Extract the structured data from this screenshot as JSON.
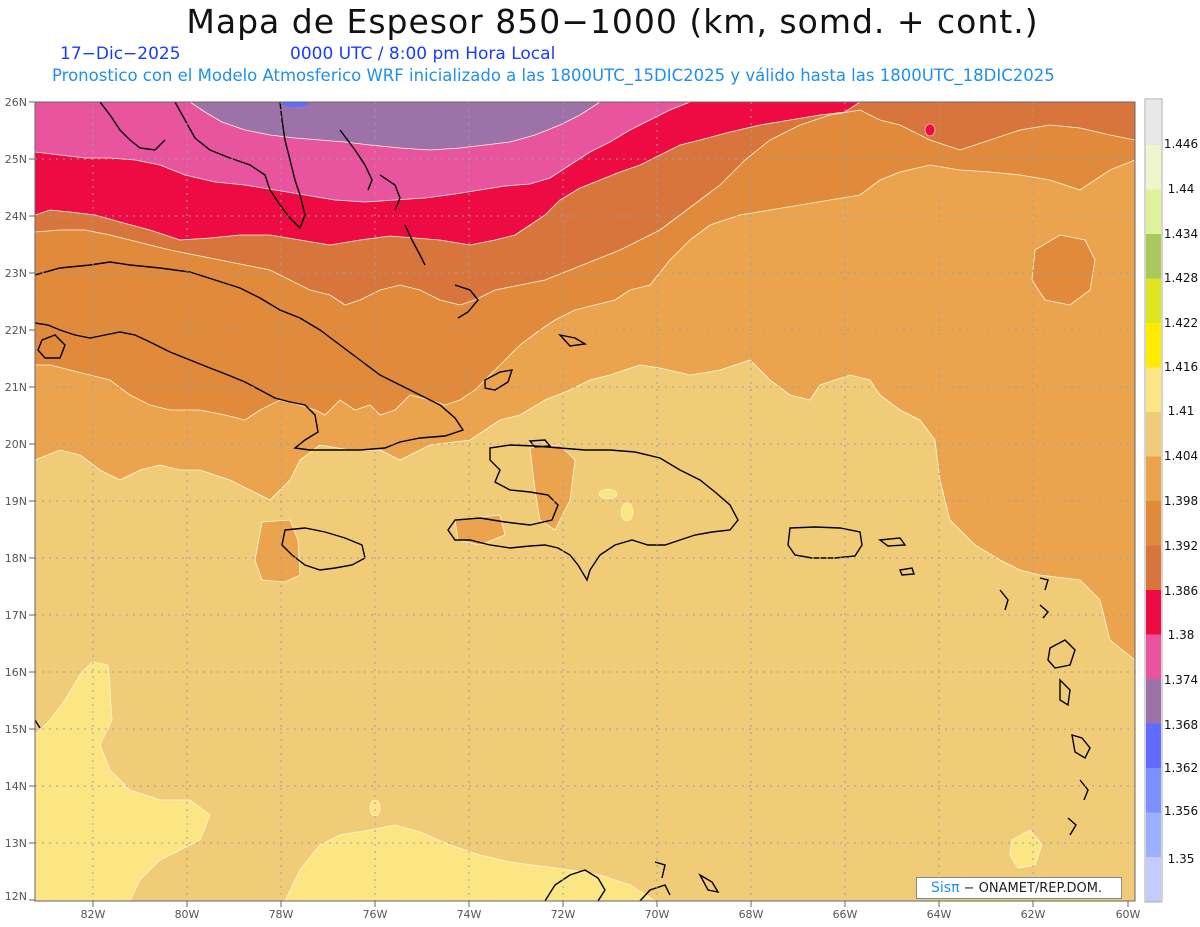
{
  "header": {
    "title": "Mapa de Espesor 850−1000 (km, somd. + cont.)",
    "date": "17−Dic−2025",
    "time": "0000 UTC / 8:00 pm Hora Local",
    "info": "Pronostico con el Modelo Atmosferico WRF inicializado a las 1800UTC_15DIC2025 y válido hasta las  1800UTC_18DIC2025"
  },
  "axes": {
    "lat_labels": [
      "26N",
      "25N",
      "24N",
      "23N",
      "22N",
      "21N",
      "20N",
      "19N",
      "18N",
      "17N",
      "16N",
      "15N",
      "14N",
      "13N",
      "12N"
    ],
    "lon_labels": [
      "82W",
      "80W",
      "78W",
      "76W",
      "74W",
      "72W",
      "70W",
      "68W",
      "66W",
      "64W",
      "62W",
      "60W"
    ],
    "lat_range": [
      12,
      26
    ],
    "lon_range": [
      -83.2,
      -60
    ]
  },
  "colorbar": {
    "levels": [
      "1.35",
      "1.356",
      "1.362",
      "1.368",
      "1.374",
      "1.38",
      "1.386",
      "1.392",
      "1.398",
      "1.404",
      "1.41",
      "1.416",
      "1.422",
      "1.428",
      "1.434",
      "1.44",
      "1.446"
    ],
    "colors": [
      "#c3cbff",
      "#9bb1ff",
      "#7c90ff",
      "#5f6cff",
      "#9c72a8",
      "#e8559e",
      "#ee0a42",
      "#d7753c",
      "#e28a3b",
      "#eba34d",
      "#f1cc78",
      "#fbe683",
      "#ffec00",
      "#dee41e",
      "#a9c95a",
      "#e1f29c",
      "#eef6cd",
      "#e8e8e8"
    ]
  },
  "credit": {
    "logo": "Sisπ",
    "text": " −  ONAMET/REP.DOM."
  }
}
